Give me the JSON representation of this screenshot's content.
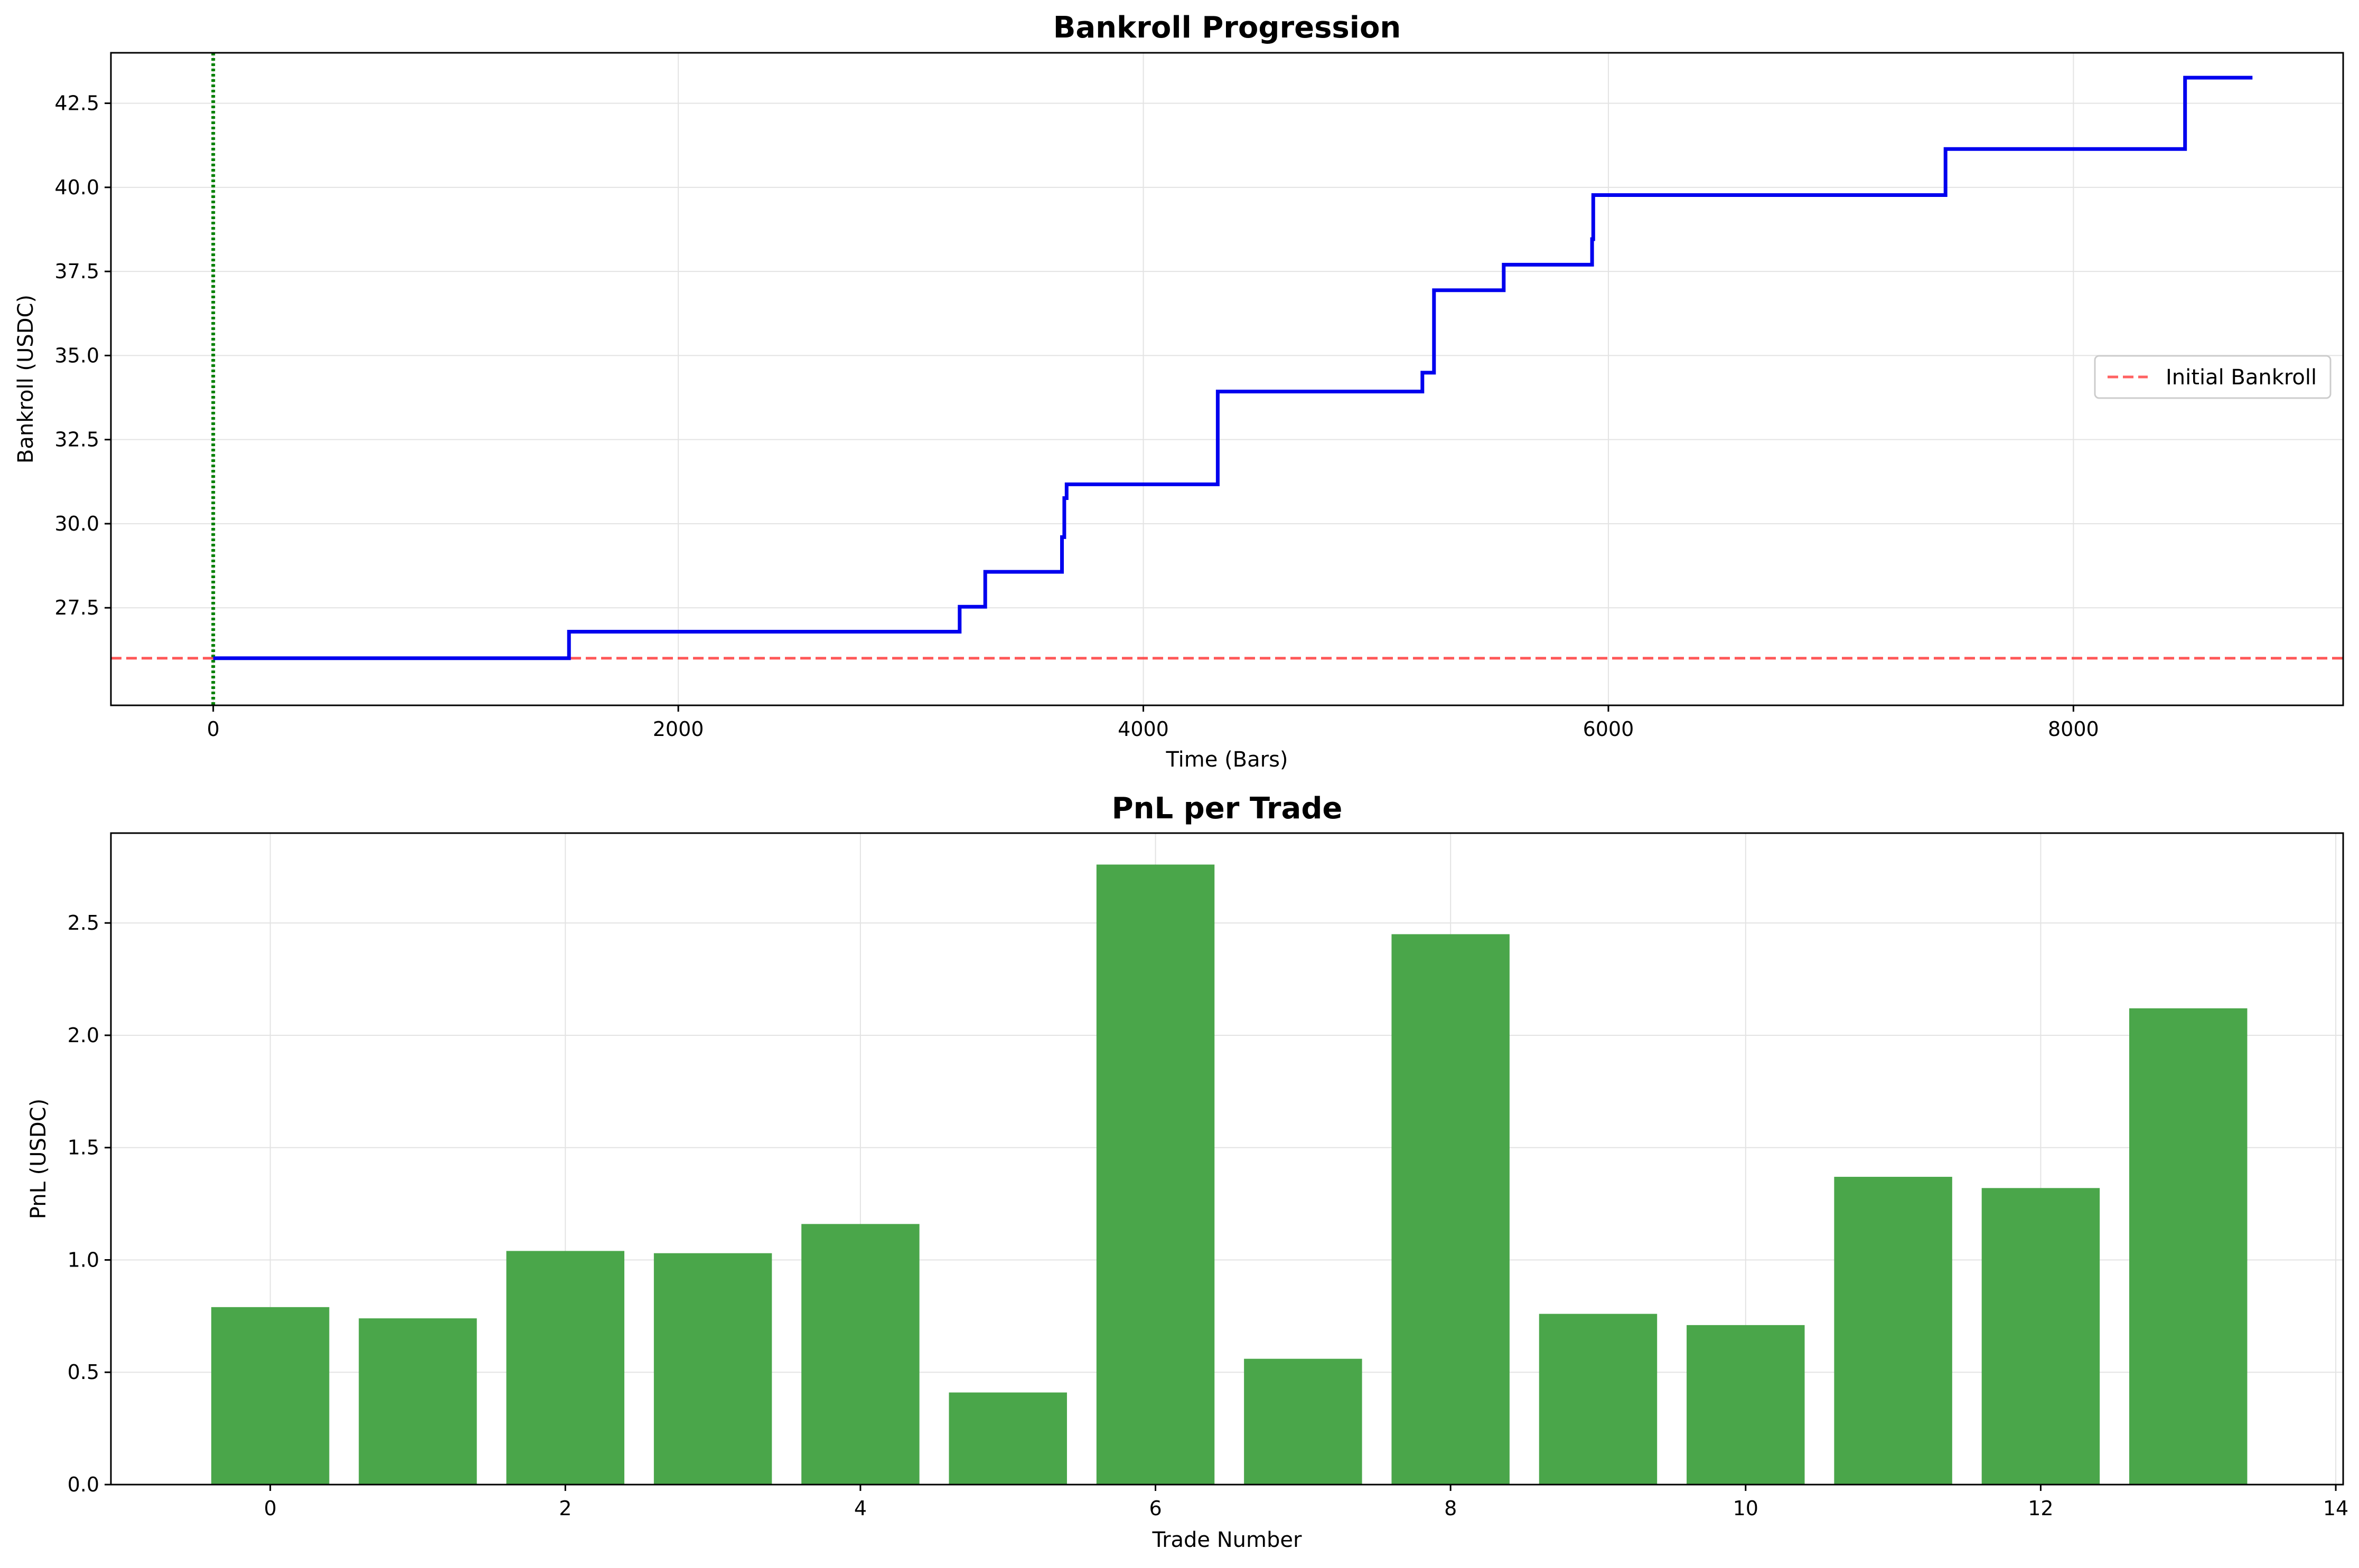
{
  "colors": {
    "bankroll_line": "#0000ee",
    "initial_line": "#ff3b3b",
    "start_marker": "#008000",
    "bar": "#4aa64a",
    "grid": "#e3e3e3"
  },
  "chart_data": [
    {
      "type": "line",
      "title": "Bankroll Progression",
      "xlabel": "Time (Bars)",
      "ylabel": "Bankroll (USDC)",
      "xlim": [
        -440,
        9160
      ],
      "ylim": [
        24.6,
        44.0
      ],
      "xticks": [
        0,
        2000,
        4000,
        6000,
        8000
      ],
      "xtick_labels": [
        "0",
        "2000",
        "4000",
        "6000",
        "8000"
      ],
      "yticks": [
        27.5,
        30.0,
        32.5,
        35.0,
        37.5,
        40.0,
        42.5
      ],
      "ytick_labels": [
        "27.5",
        "30.0",
        "32.5",
        "35.0",
        "37.5",
        "40.0",
        "42.5"
      ],
      "grid": true,
      "legend_position": "center-right",
      "legend": [
        "Initial Bankroll"
      ],
      "initial_bankroll": 26.0,
      "start_marker_x": 0,
      "series": [
        {
          "style": "step",
          "x": [
            0,
            1530,
            1530,
            3210,
            3210,
            3320,
            3320,
            3650,
            3650,
            3660,
            3660,
            3670,
            3670,
            4320,
            4320,
            5200,
            5200,
            5250,
            5250,
            5550,
            5550,
            5930,
            5930,
            5935,
            5935,
            7450,
            7450,
            8480,
            8480,
            8770
          ],
          "y": [
            26.0,
            26.0,
            26.79,
            26.79,
            27.53,
            27.53,
            28.57,
            28.57,
            29.6,
            29.6,
            30.76,
            30.76,
            31.17,
            31.17,
            33.93,
            33.93,
            34.49,
            34.49,
            36.94,
            36.94,
            37.7,
            37.7,
            38.46,
            38.46,
            39.77,
            39.77,
            41.14,
            41.14,
            43.26,
            43.26
          ]
        }
      ]
    },
    {
      "type": "bar",
      "title": "PnL per Trade",
      "xlabel": "Trade Number",
      "ylabel": "PnL (USDC)",
      "xlim": [
        -1.08,
        14.05
      ],
      "ylim": [
        0,
        2.9
      ],
      "xticks": [
        0,
        2,
        4,
        6,
        8,
        10,
        12,
        14
      ],
      "xtick_labels": [
        "0",
        "2",
        "4",
        "6",
        "8",
        "10",
        "12",
        "14"
      ],
      "yticks": [
        0.0,
        0.5,
        1.0,
        1.5,
        2.0,
        2.5
      ],
      "ytick_labels": [
        "0.0",
        "0.5",
        "1.0",
        "1.5",
        "2.0",
        "2.5"
      ],
      "grid": true,
      "categories": [
        0,
        1,
        2,
        3,
        4,
        5,
        6,
        7,
        8,
        9,
        10,
        11,
        12,
        13
      ],
      "values": [
        0.79,
        0.74,
        1.04,
        1.03,
        1.16,
        0.41,
        2.76,
        0.56,
        2.45,
        0.76,
        0.71,
        1.37,
        1.32,
        2.12
      ]
    }
  ]
}
